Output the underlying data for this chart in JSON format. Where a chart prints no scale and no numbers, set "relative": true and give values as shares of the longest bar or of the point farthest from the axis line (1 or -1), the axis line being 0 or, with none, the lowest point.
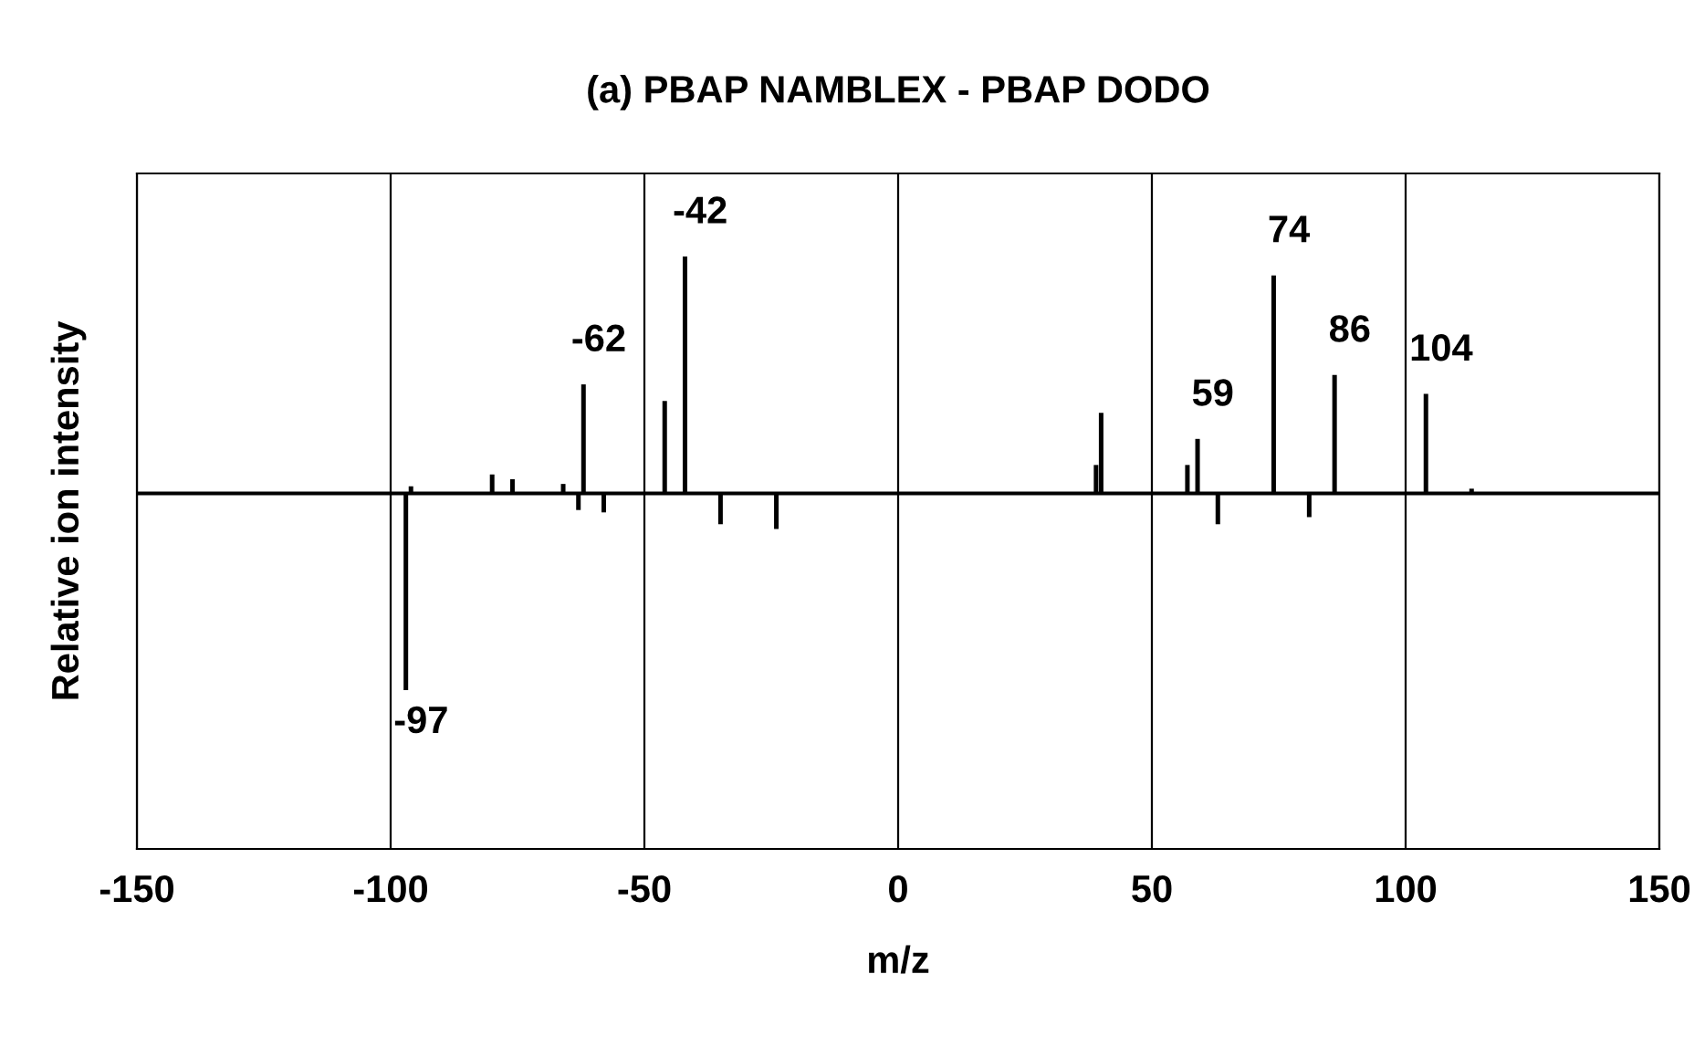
{
  "chart_data": {
    "type": "bar",
    "title": "(a) PBAP NAMBLEX - PBAP DODO",
    "xlabel": "m/z",
    "ylabel": "Relative ion intensity",
    "relative": true,
    "x": [
      -97,
      -96,
      -80,
      -76,
      -66,
      -63,
      -62,
      -58,
      -46,
      -42,
      -35,
      -24,
      39,
      40,
      57,
      59,
      63,
      74,
      81,
      86,
      104,
      113
    ],
    "series": [
      {
        "color": "#000000",
        "values": [
          -0.83,
          0.03,
          0.08,
          0.06,
          0.04,
          -0.07,
          0.46,
          -0.08,
          0.39,
          1,
          -0.13,
          -0.15,
          0.12,
          0.34,
          0.12,
          0.23,
          -0.13,
          0.92,
          -0.1,
          0.5,
          0.42,
          0.02
        ]
      }
    ],
    "xlim": [
      -150,
      150
    ],
    "xticks": [
      -150,
      -100,
      -50,
      0,
      50,
      100,
      150
    ],
    "grid": "x",
    "tick_labels": "x",
    "legend": false,
    "annotations": [
      {
        "text": "-97",
        "x": -97,
        "y": -0.83
      },
      {
        "text": "-62",
        "x": -62,
        "y": 0.46
      },
      {
        "text": "-42",
        "x": -42,
        "y": 1
      },
      {
        "text": "59",
        "x": 59,
        "y": 0.23
      },
      {
        "text": "74",
        "x": 74,
        "y": 0.92
      },
      {
        "text": "86",
        "x": 86,
        "y": 0.5
      },
      {
        "text": "104",
        "x": 104,
        "y": 0.42
      }
    ]
  }
}
